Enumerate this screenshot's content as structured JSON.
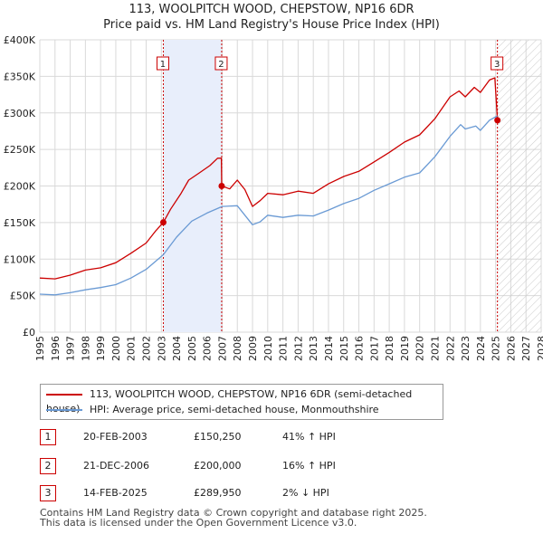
{
  "title": {
    "line1": "113, WOOLPITCH WOOD, CHEPSTOW, NP16 6DR",
    "line2": "Price paid vs. HM Land Registry's House Price Index (HPI)"
  },
  "colors": {
    "property": "#cc0000",
    "hpi": "#6a9ad4",
    "shade": "#e8eefb",
    "grid": "#d9d9d9",
    "marker_border": "#cc0000"
  },
  "chart_data": {
    "type": "line",
    "title": "113, WOOLPITCH WOOD, CHEPSTOW, NP16 6DR — Price paid vs. HM Land Registry's House Price Index (HPI)",
    "xlabel": "",
    "ylabel": "",
    "xlim": [
      1995,
      2028
    ],
    "ylim": [
      0,
      400000
    ],
    "x_ticks": [
      "1995",
      "1996",
      "1997",
      "1998",
      "1999",
      "2000",
      "2001",
      "2002",
      "2003",
      "2004",
      "2005",
      "2006",
      "2007",
      "2008",
      "2009",
      "2010",
      "2011",
      "2012",
      "2013",
      "2014",
      "2015",
      "2016",
      "2017",
      "2018",
      "2019",
      "2020",
      "2021",
      "2022",
      "2023",
      "2024",
      "2025",
      "2026",
      "2027",
      "2028"
    ],
    "y_ticks": [
      {
        "value": 0,
        "label": "£0"
      },
      {
        "value": 50000,
        "label": "£50K"
      },
      {
        "value": 100000,
        "label": "£100K"
      },
      {
        "value": 150000,
        "label": "£150K"
      },
      {
        "value": 200000,
        "label": "£200K"
      },
      {
        "value": 250000,
        "label": "£250K"
      },
      {
        "value": 300000,
        "label": "£300K"
      },
      {
        "value": 350000,
        "label": "£350K"
      },
      {
        "value": 400000,
        "label": "£400K"
      }
    ],
    "grid": true,
    "shaded_period": [
      2003.13,
      2006.97
    ],
    "future_hatch_from": 2025.12,
    "series": [
      {
        "name": "113, WOOLPITCH WOOD, CHEPSTOW, NP16 6DR (semi-detached house)",
        "color": "#cc0000",
        "points": [
          [
            1995.0,
            74000
          ],
          [
            1996.0,
            73000
          ],
          [
            1997.0,
            78000
          ],
          [
            1998.0,
            85000
          ],
          [
            1999.0,
            88000
          ],
          [
            2000.0,
            95000
          ],
          [
            2001.0,
            108000
          ],
          [
            2002.0,
            122000
          ],
          [
            2002.6,
            138000
          ],
          [
            2003.13,
            150250
          ],
          [
            2003.6,
            168000
          ],
          [
            2004.3,
            190000
          ],
          [
            2004.8,
            208000
          ],
          [
            2005.5,
            218000
          ],
          [
            2006.2,
            228000
          ],
          [
            2006.7,
            238000
          ],
          [
            2006.95,
            238000
          ],
          [
            2006.97,
            200000
          ],
          [
            2007.5,
            196000
          ],
          [
            2008.0,
            208000
          ],
          [
            2008.5,
            195000
          ],
          [
            2009.0,
            172000
          ],
          [
            2009.5,
            180000
          ],
          [
            2010.0,
            190000
          ],
          [
            2011.0,
            188000
          ],
          [
            2012.0,
            193000
          ],
          [
            2013.0,
            190000
          ],
          [
            2014.0,
            203000
          ],
          [
            2015.0,
            213000
          ],
          [
            2016.0,
            220000
          ],
          [
            2017.0,
            233000
          ],
          [
            2018.0,
            246000
          ],
          [
            2019.0,
            260000
          ],
          [
            2020.0,
            270000
          ],
          [
            2021.0,
            292000
          ],
          [
            2022.0,
            322000
          ],
          [
            2022.6,
            330000
          ],
          [
            2023.0,
            322000
          ],
          [
            2023.6,
            335000
          ],
          [
            2024.0,
            328000
          ],
          [
            2024.6,
            345000
          ],
          [
            2024.95,
            348000
          ],
          [
            2025.12,
            289950
          ]
        ]
      },
      {
        "name": "HPI: Average price, semi-detached house, Monmouthshire",
        "color": "#6a9ad4",
        "points": [
          [
            1995.0,
            52000
          ],
          [
            1996.0,
            51000
          ],
          [
            1997.0,
            54000
          ],
          [
            1998.0,
            58000
          ],
          [
            1999.0,
            61000
          ],
          [
            2000.0,
            65000
          ],
          [
            2001.0,
            74000
          ],
          [
            2002.0,
            86000
          ],
          [
            2003.13,
            106000
          ],
          [
            2004.0,
            130000
          ],
          [
            2005.0,
            152000
          ],
          [
            2006.0,
            163000
          ],
          [
            2007.0,
            172000
          ],
          [
            2008.0,
            173000
          ],
          [
            2008.5,
            160000
          ],
          [
            2009.0,
            147000
          ],
          [
            2009.5,
            151000
          ],
          [
            2010.0,
            160000
          ],
          [
            2011.0,
            157000
          ],
          [
            2012.0,
            160000
          ],
          [
            2013.0,
            159000
          ],
          [
            2014.0,
            167000
          ],
          [
            2015.0,
            176000
          ],
          [
            2016.0,
            183000
          ],
          [
            2017.0,
            194000
          ],
          [
            2018.0,
            203000
          ],
          [
            2019.0,
            212000
          ],
          [
            2020.0,
            218000
          ],
          [
            2021.0,
            240000
          ],
          [
            2022.0,
            268000
          ],
          [
            2022.7,
            284000
          ],
          [
            2023.0,
            278000
          ],
          [
            2023.7,
            282000
          ],
          [
            2024.0,
            276000
          ],
          [
            2024.6,
            290000
          ],
          [
            2025.12,
            296000
          ]
        ]
      }
    ],
    "sales": [
      {
        "label": "1",
        "x": 2003.13,
        "y": 150250
      },
      {
        "label": "2",
        "x": 2006.97,
        "y": 200000
      },
      {
        "label": "3",
        "x": 2025.12,
        "y": 289950
      }
    ]
  },
  "legend": {
    "property_label": "113, WOOLPITCH WOOD, CHEPSTOW, NP16 6DR (semi-detached house)",
    "hpi_label": "HPI: Average price, semi-detached house, Monmouthshire"
  },
  "transactions": [
    {
      "num": "1",
      "date": "20-FEB-2003",
      "price": "£150,250",
      "hpi": "41% ↑ HPI"
    },
    {
      "num": "2",
      "date": "21-DEC-2006",
      "price": "£200,000",
      "hpi": "16% ↑ HPI"
    },
    {
      "num": "3",
      "date": "14-FEB-2025",
      "price": "£289,950",
      "hpi": "2% ↓ HPI"
    }
  ],
  "footer": {
    "line1": "Contains HM Land Registry data © Crown copyright and database right 2025.",
    "line2": "This data is licensed under the Open Government Licence v3.0."
  }
}
